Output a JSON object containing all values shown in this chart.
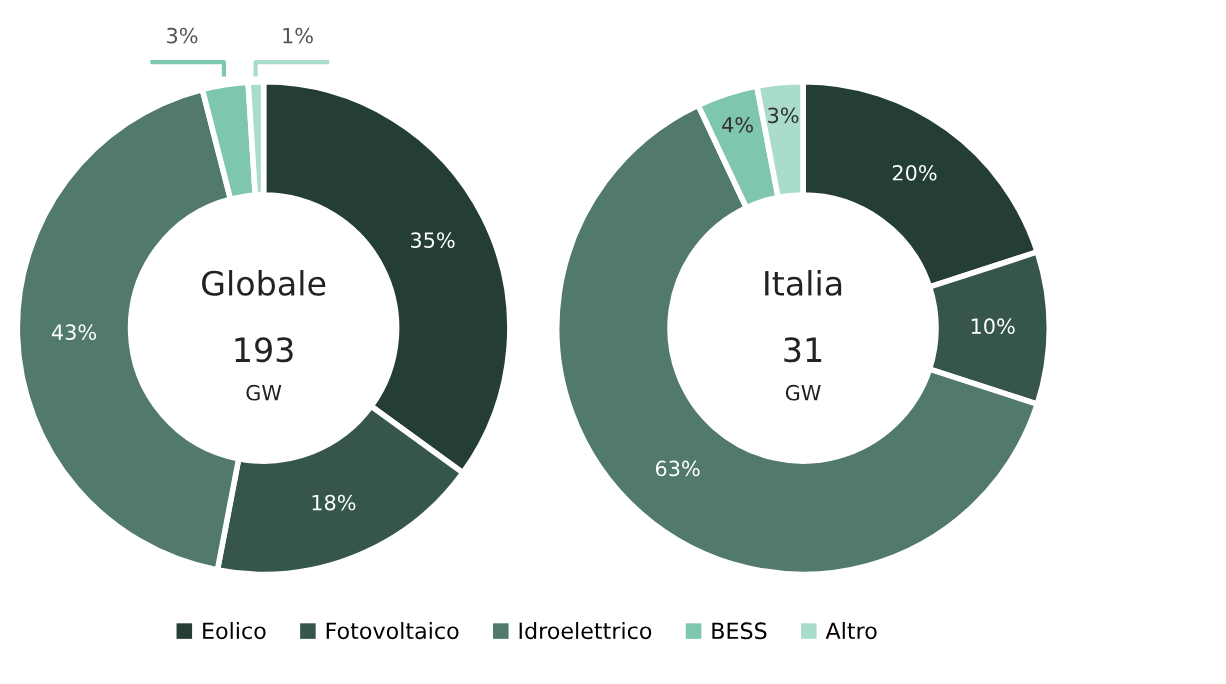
{
  "chart_data": [
    {
      "type": "donut",
      "title": "Globale",
      "annotations": [
        "193",
        "GW"
      ],
      "categories": [
        "Eolico",
        "Fotovoltaico",
        "Idroelettrico",
        "BESS",
        "Altro"
      ],
      "values": [
        35,
        18,
        43,
        3,
        1
      ],
      "value_labels": [
        "35%",
        "18%",
        "43%",
        "3%",
        "1%"
      ],
      "colors": [
        "#243d36",
        "#36564b",
        "#527a6c",
        "#7fc6ae",
        "#a9dccc"
      ],
      "legend": "bottom"
    },
    {
      "type": "donut",
      "title": "Italia",
      "annotations": [
        "31",
        "GW"
      ],
      "categories": [
        null,
        null,
        null,
        null,
        null
      ],
      "values": [
        20,
        10,
        63,
        4,
        3
      ],
      "value_labels": [
        "20%",
        "10%",
        "63%",
        "4%",
        "3%"
      ],
      "colors": [
        "#243d36",
        "#36564b",
        "#527a6c",
        "#7fc6ae",
        "#a9dccc"
      ]
    }
  ]
}
